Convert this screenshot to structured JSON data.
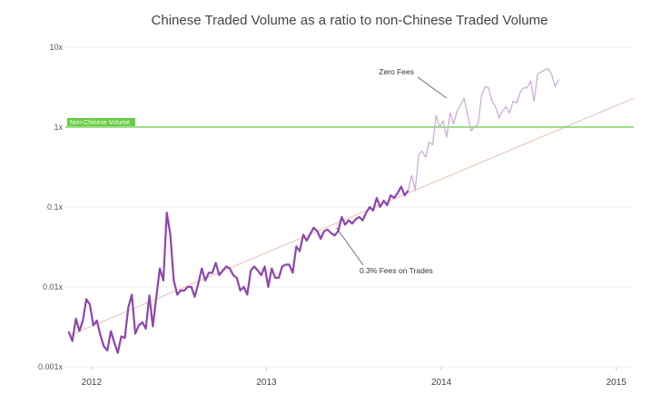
{
  "chart_data": {
    "type": "line",
    "title": "Chinese Traded Volume as a ratio to non-Chinese Traded Volume",
    "xlabel": "",
    "ylabel": "",
    "y_scale": "log",
    "ylim": [
      0.001,
      10
    ],
    "y_ticks": [
      {
        "value": 10,
        "label": "10x"
      },
      {
        "value": 1,
        "label": "1x"
      },
      {
        "value": 0.1,
        "label": "0.1x"
      },
      {
        "value": 0.01,
        "label": "0.01x"
      },
      {
        "value": 0.001,
        "label": "0.001x"
      }
    ],
    "xlim": [
      2011.85,
      2015.1
    ],
    "x_ticks": [
      {
        "value": 2012,
        "label": "2012"
      },
      {
        "value": 2013,
        "label": "2013"
      },
      {
        "value": 2014,
        "label": "2014"
      },
      {
        "value": 2015,
        "label": "2015"
      }
    ],
    "grid": true,
    "reference_line": {
      "value": 1,
      "label": "Non-Chinese Volume",
      "color": "#66cc44"
    },
    "trend_line": {
      "from": [
        2011.88,
        0.0025
      ],
      "to": [
        2015.1,
        2.3
      ],
      "color": "#e8c8c0"
    },
    "annotations": [
      {
        "text": "Zero Fees",
        "point": [
          2014.03,
          2.3
        ]
      },
      {
        "text": "0.3% Fees on Trades",
        "point": [
          2013.4,
          0.055
        ]
      }
    ],
    "series": [
      {
        "color": "#8e44ad",
        "style": "thick",
        "points": [
          [
            2011.87,
            0.0027
          ],
          [
            2011.89,
            0.0021
          ],
          [
            2011.91,
            0.004
          ],
          [
            2011.93,
            0.0028
          ],
          [
            2011.95,
            0.0038
          ],
          [
            2011.97,
            0.007
          ],
          [
            2011.99,
            0.006
          ],
          [
            2012.01,
            0.0033
          ],
          [
            2012.03,
            0.0038
          ],
          [
            2012.05,
            0.0025
          ],
          [
            2012.07,
            0.0018
          ],
          [
            2012.09,
            0.0016
          ],
          [
            2012.11,
            0.0028
          ],
          [
            2012.13,
            0.002
          ],
          [
            2012.15,
            0.0015
          ],
          [
            2012.17,
            0.0024
          ],
          [
            2012.19,
            0.0023
          ],
          [
            2012.21,
            0.0055
          ],
          [
            2012.23,
            0.008
          ],
          [
            2012.25,
            0.0026
          ],
          [
            2012.27,
            0.0033
          ],
          [
            2012.29,
            0.0036
          ],
          [
            2012.31,
            0.003
          ],
          [
            2012.33,
            0.0078
          ],
          [
            2012.35,
            0.0032
          ],
          [
            2012.37,
            0.0075
          ],
          [
            2012.39,
            0.017
          ],
          [
            2012.41,
            0.012
          ],
          [
            2012.43,
            0.085
          ],
          [
            2012.45,
            0.045
          ],
          [
            2012.47,
            0.012
          ],
          [
            2012.49,
            0.008
          ],
          [
            2012.51,
            0.009
          ],
          [
            2012.53,
            0.009
          ],
          [
            2012.55,
            0.01
          ],
          [
            2012.57,
            0.01
          ],
          [
            2012.59,
            0.0075
          ],
          [
            2012.61,
            0.011
          ],
          [
            2012.63,
            0.017
          ],
          [
            2012.65,
            0.012
          ],
          [
            2012.67,
            0.015
          ],
          [
            2012.69,
            0.015
          ],
          [
            2012.71,
            0.02
          ],
          [
            2012.73,
            0.014
          ],
          [
            2012.75,
            0.016
          ],
          [
            2012.77,
            0.018
          ],
          [
            2012.79,
            0.017
          ],
          [
            2012.81,
            0.014
          ],
          [
            2012.83,
            0.013
          ],
          [
            2012.85,
            0.009
          ],
          [
            2012.87,
            0.01
          ],
          [
            2012.89,
            0.008
          ],
          [
            2012.91,
            0.016
          ],
          [
            2012.93,
            0.018
          ],
          [
            2012.95,
            0.016
          ],
          [
            2012.97,
            0.014
          ],
          [
            2012.99,
            0.018
          ],
          [
            2013.01,
            0.01
          ],
          [
            2013.03,
            0.017
          ],
          [
            2013.05,
            0.013
          ],
          [
            2013.07,
            0.013
          ],
          [
            2013.09,
            0.018
          ],
          [
            2013.11,
            0.019
          ],
          [
            2013.13,
            0.019
          ],
          [
            2013.15,
            0.015
          ],
          [
            2013.17,
            0.032
          ],
          [
            2013.19,
            0.028
          ],
          [
            2013.21,
            0.045
          ],
          [
            2013.23,
            0.038
          ],
          [
            2013.25,
            0.046
          ],
          [
            2013.27,
            0.055
          ],
          [
            2013.29,
            0.05
          ],
          [
            2013.31,
            0.04
          ],
          [
            2013.33,
            0.05
          ],
          [
            2013.35,
            0.052
          ],
          [
            2013.37,
            0.047
          ],
          [
            2013.39,
            0.044
          ],
          [
            2013.41,
            0.05
          ],
          [
            2013.43,
            0.075
          ],
          [
            2013.45,
            0.06
          ],
          [
            2013.47,
            0.068
          ],
          [
            2013.49,
            0.062
          ],
          [
            2013.51,
            0.07
          ],
          [
            2013.53,
            0.075
          ],
          [
            2013.55,
            0.068
          ],
          [
            2013.57,
            0.085
          ],
          [
            2013.59,
            0.1
          ],
          [
            2013.61,
            0.09
          ],
          [
            2013.63,
            0.13
          ],
          [
            2013.65,
            0.1
          ],
          [
            2013.67,
            0.12
          ],
          [
            2013.69,
            0.105
          ],
          [
            2013.71,
            0.14
          ],
          [
            2013.73,
            0.13
          ],
          [
            2013.75,
            0.15
          ],
          [
            2013.77,
            0.18
          ],
          [
            2013.79,
            0.14
          ],
          [
            2013.81,
            0.16
          ]
        ]
      },
      {
        "color": "#c8a8d8",
        "style": "thin",
        "points": [
          [
            2013.81,
            0.16
          ],
          [
            2013.83,
            0.25
          ],
          [
            2013.85,
            0.16
          ],
          [
            2013.87,
            0.45
          ],
          [
            2013.89,
            0.5
          ],
          [
            2013.91,
            0.42
          ],
          [
            2013.93,
            0.65
          ],
          [
            2013.95,
            0.6
          ],
          [
            2013.97,
            1.4
          ],
          [
            2013.99,
            1.0
          ],
          [
            2014.01,
            1.2
          ],
          [
            2014.03,
            0.75
          ],
          [
            2014.05,
            1.5
          ],
          [
            2014.07,
            1.1
          ],
          [
            2014.09,
            1.6
          ],
          [
            2014.11,
            1.9
          ],
          [
            2014.13,
            2.3
          ],
          [
            2014.15,
            1.4
          ],
          [
            2014.17,
            0.9
          ],
          [
            2014.19,
            1.0
          ],
          [
            2014.21,
            1.1
          ],
          [
            2014.23,
            2.5
          ],
          [
            2014.25,
            3.2
          ],
          [
            2014.27,
            3.1
          ],
          [
            2014.29,
            2.1
          ],
          [
            2014.31,
            1.8
          ],
          [
            2014.33,
            1.3
          ],
          [
            2014.35,
            1.6
          ],
          [
            2014.37,
            1.8
          ],
          [
            2014.39,
            1.5
          ],
          [
            2014.41,
            2.1
          ],
          [
            2014.43,
            2.0
          ],
          [
            2014.45,
            2.7
          ],
          [
            2014.47,
            3.1
          ],
          [
            2014.49,
            3.1
          ],
          [
            2014.51,
            3.8
          ],
          [
            2014.53,
            2.1
          ],
          [
            2014.55,
            4.6
          ],
          [
            2014.57,
            4.9
          ],
          [
            2014.59,
            5.2
          ],
          [
            2014.61,
            5.4
          ],
          [
            2014.63,
            4.6
          ],
          [
            2014.65,
            3.2
          ],
          [
            2014.67,
            3.9
          ]
        ]
      }
    ]
  }
}
